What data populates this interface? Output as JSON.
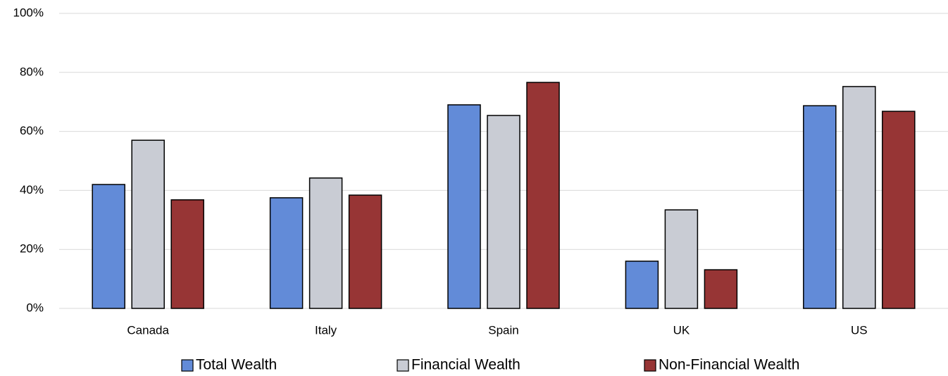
{
  "chart_data": {
    "type": "bar",
    "categories": [
      "Canada",
      "Italy",
      "Spain",
      "UK",
      "US"
    ],
    "series": [
      {
        "name": "Total Wealth",
        "color": "#628bd8",
        "values": [
          42.0,
          37.5,
          69.0,
          16.0,
          68.7
        ]
      },
      {
        "name": "Financial Wealth",
        "color": "#c9ccd4",
        "values": [
          57.0,
          44.2,
          65.4,
          33.4,
          75.2
        ]
      },
      {
        "name": "Non-Financial Wealth",
        "color": "#973535",
        "values": [
          36.8,
          38.4,
          76.6,
          13.1,
          66.8
        ]
      }
    ],
    "ylim": [
      0,
      100
    ],
    "yticks": [
      {
        "value": 0,
        "label": "0%"
      },
      {
        "value": 20,
        "label": "20%"
      },
      {
        "value": 40,
        "label": "40%"
      },
      {
        "value": 60,
        "label": "60%"
      },
      {
        "value": 80,
        "label": "80%"
      },
      {
        "value": 100,
        "label": "100%"
      }
    ],
    "grid": true,
    "legend": "bottom"
  }
}
